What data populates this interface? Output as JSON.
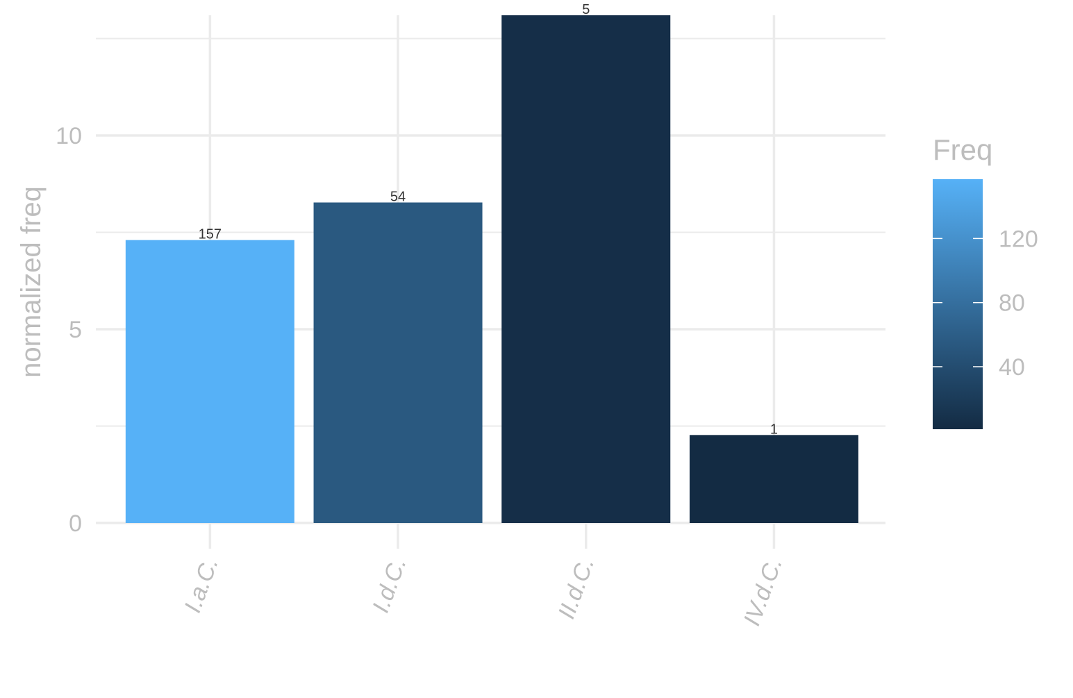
{
  "chart_data": {
    "type": "bar",
    "categories": [
      "I.a.C.",
      "I.d.C.",
      "II.d.C.",
      "IV.d.C."
    ],
    "values": [
      7.3,
      8.27,
      13.1,
      2.27
    ],
    "bar_labels": [
      "157",
      "54",
      "5",
      "1"
    ],
    "fill_values": [
      157,
      54,
      5,
      1
    ],
    "xlabel": "",
    "ylabel": "normalized freq",
    "ylim": [
      0,
      13.1
    ],
    "y_ticks": [
      0,
      5,
      10
    ],
    "grid": true,
    "legend": {
      "title": "Freq",
      "placement": "right",
      "ticks": [
        "40",
        "80",
        "120"
      ],
      "tick_values": [
        40,
        80,
        120
      ],
      "range": [
        1,
        157
      ],
      "color_low": "#132B43",
      "color_high": "#56B1F7"
    }
  }
}
